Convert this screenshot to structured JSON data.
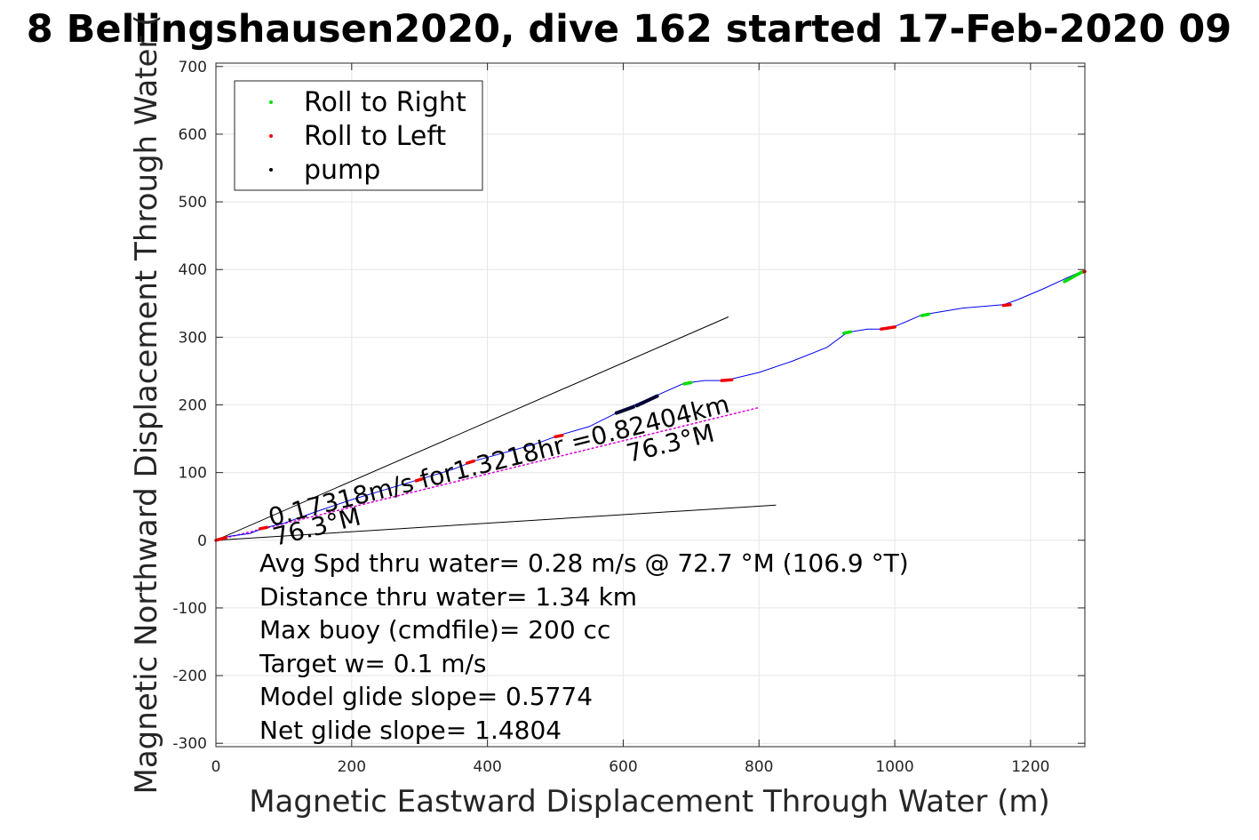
{
  "chart_data": {
    "type": "line",
    "title": "8 Bellingshausen2020, dive 162 started 17-Feb-2020 09",
    "xlabel": "Magnetic Eastward Displacement Through Water (m)",
    "ylabel": "Magnetic Northward Displacement Through Water (",
    "xlim": [
      0,
      1280
    ],
    "ylim": [
      -305,
      705
    ],
    "xticks": [
      0,
      200,
      400,
      600,
      800,
      1000,
      1200
    ],
    "yticks": [
      -300,
      -200,
      -100,
      0,
      100,
      200,
      300,
      400,
      500,
      600,
      700
    ],
    "grid": true,
    "legend": {
      "placement": "top-left",
      "entries": [
        {
          "label": "Roll to Right",
          "color": "#00dd00"
        },
        {
          "label": "Roll to Left",
          "color": "#ee0000"
        },
        {
          "label": "pump",
          "color": "#000000"
        }
      ]
    },
    "track": {
      "color": "#0000ee",
      "x": [
        0,
        20,
        50,
        70,
        100,
        150,
        200,
        250,
        300,
        350,
        380,
        420,
        470,
        505,
        550,
        600,
        640,
        690,
        720,
        750,
        800,
        850,
        900,
        930,
        960,
        990,
        1010,
        1040,
        1100,
        1160,
        1180,
        1220,
        1250,
        1270,
        1280
      ],
      "y": [
        0,
        6,
        10,
        18,
        25,
        43,
        60,
        75,
        90,
        105,
        117,
        128,
        142,
        155,
        168,
        193,
        210,
        232,
        236,
        236,
        248,
        265,
        285,
        307,
        312,
        312,
        320,
        333,
        343,
        348,
        355,
        372,
        386,
        395,
        397
      ]
    },
    "roll_right": [
      {
        "x": [
          690,
          700
        ],
        "y": [
          231,
          233
        ]
      },
      {
        "x": [
          925,
          935
        ],
        "y": [
          306,
          308
        ]
      },
      {
        "x": [
          1040,
          1050
        ],
        "y": [
          332,
          334
        ]
      },
      {
        "x": [
          1250,
          1275
        ],
        "y": [
          382,
          396
        ]
      }
    ],
    "roll_left": [
      {
        "x": [
          0,
          15
        ],
        "y": [
          0,
          4
        ]
      },
      {
        "x": [
          65,
          75
        ],
        "y": [
          17,
          19
        ]
      },
      {
        "x": [
          295,
          305
        ],
        "y": [
          88,
          91
        ]
      },
      {
        "x": [
          370,
          380
        ],
        "y": [
          114,
          117
        ]
      },
      {
        "x": [
          500,
          510
        ],
        "y": [
          153,
          155
        ]
      },
      {
        "x": [
          745,
          760
        ],
        "y": [
          236,
          237
        ]
      },
      {
        "x": [
          980,
          1000
        ],
        "y": [
          312,
          315
        ]
      },
      {
        "x": [
          1160,
          1170
        ],
        "y": [
          347,
          348
        ]
      },
      {
        "x": [
          1275,
          1280
        ],
        "y": [
          396,
          397
        ]
      }
    ],
    "pump": [
      {
        "x": [
          590,
          615
        ],
        "y": [
          188,
          197
        ]
      },
      {
        "x": [
          620,
          650
        ],
        "y": [
          199,
          213
        ]
      }
    ],
    "heading_line": {
      "x": [
        0,
        800
      ],
      "y": [
        0,
        196
      ],
      "color": "#dd00dd"
    },
    "cone_lines": [
      {
        "x": [
          0,
          755
        ],
        "y": [
          0,
          330
        ]
      },
      {
        "x": [
          0,
          825
        ],
        "y": [
          0,
          52
        ]
      }
    ],
    "annotations": {
      "speed_text": "0.17318m/s for1.3218hr =0.82404km",
      "heading_near": "76.3°M",
      "heading_far": "76.3°M"
    },
    "stats": [
      "Avg Spd thru water=  0.28 m/s @  72.7 °M (106.9 °T)",
      "Distance thru water=  1.34 km",
      "Max buoy (cmdfile)= 200 cc",
      "Target w= 0.1 m/s",
      "Model glide slope= 0.5774",
      "Net glide slope= 1.4804"
    ]
  }
}
